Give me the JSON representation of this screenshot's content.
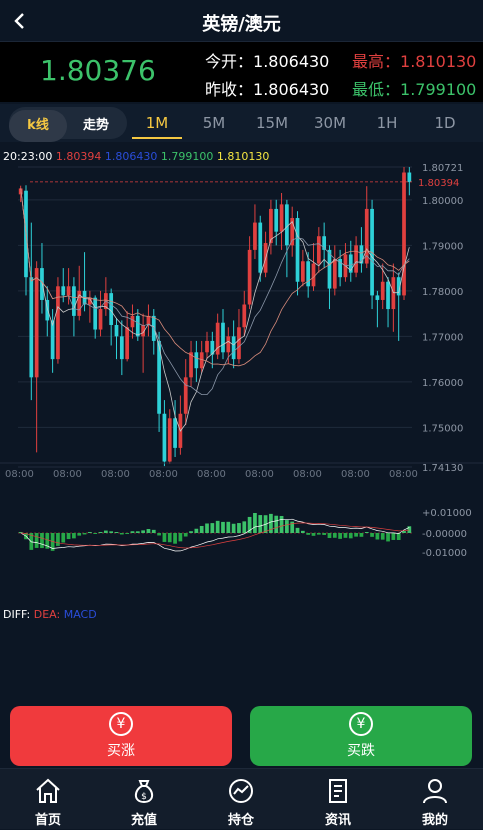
{
  "header": {
    "title": "英镑/澳元"
  },
  "quote": {
    "price": "1.80376",
    "open_label": "今开：",
    "open_value": "1.806430",
    "prev_close_label": "昨收：",
    "prev_close_value": "1.806430",
    "high_label": "最高：",
    "high_value": "1.810130",
    "low_label": "最低：",
    "low_value": "1.799100"
  },
  "tabs": {
    "kline": "k线",
    "trend": "走势",
    "timeframes": [
      "1M",
      "5M",
      "15M",
      "30M",
      "1H",
      "1D"
    ],
    "active_timeframe": "1M"
  },
  "legend": {
    "time": "20:23:00",
    "v1": "1.80394",
    "v2": "1.806430",
    "v3": "1.799100",
    "v4": "1.810130"
  },
  "macd_legend": {
    "diff": "DIFF:",
    "dea": "DEA:",
    "macd": "MACD"
  },
  "actions": {
    "buy_up": "买涨",
    "buy_down": "买跌"
  },
  "nav": {
    "home": "首页",
    "deposit": "充值",
    "positions": "持仓",
    "news": "资讯",
    "mine": "我的"
  },
  "colors": {
    "up": "#3cc26a",
    "down": "#e0403f",
    "accent": "#f5c842",
    "buy_up_bg": "#f03a3d",
    "buy_down_bg": "#27a848"
  },
  "chart_data": {
    "type": "candlestick",
    "price_axis": [
      "1.80721",
      "1.80000",
      "1.79000",
      "1.78000",
      "1.77000",
      "1.76000",
      "1.75000",
      "1.74130"
    ],
    "ylim": [
      1.7413,
      1.80721
    ],
    "last_price_label": "1.80394",
    "x_ticks": [
      "08:00",
      "08:00",
      "08:00",
      "08:00",
      "08:00",
      "08:00",
      "08:00",
      "08:00",
      "08:00"
    ],
    "macd_axis": [
      "+0.01000",
      "-0.00000",
      "-0.01000"
    ],
    "candles": [
      [
        1.8012,
        1.8025,
        1.8031,
        1.7995
      ],
      [
        1.802,
        1.783,
        1.8032,
        1.779
      ],
      [
        1.783,
        1.761,
        1.795,
        1.756
      ],
      [
        1.761,
        1.785,
        1.7865,
        1.7445
      ],
      [
        1.785,
        1.778,
        1.7905,
        1.775
      ],
      [
        1.778,
        1.7735,
        1.781,
        1.77
      ],
      [
        1.7735,
        1.765,
        1.776,
        1.762
      ],
      [
        1.765,
        1.781,
        1.783,
        1.764
      ],
      [
        1.781,
        1.779,
        1.785,
        1.7775
      ],
      [
        1.779,
        1.781,
        1.785,
        1.777
      ],
      [
        1.781,
        1.7745,
        1.783,
        1.77
      ],
      [
        1.7745,
        1.78,
        1.7855,
        1.7735
      ],
      [
        1.78,
        1.777,
        1.7885,
        1.7755
      ],
      [
        1.777,
        1.7785,
        1.78,
        1.773
      ],
      [
        1.7785,
        1.7715,
        1.779,
        1.7695
      ],
      [
        1.7715,
        1.776,
        1.78,
        1.77
      ],
      [
        1.776,
        1.7795,
        1.783,
        1.7745
      ],
      [
        1.7795,
        1.7725,
        1.7805,
        1.768
      ],
      [
        1.7725,
        1.77,
        1.774,
        1.765
      ],
      [
        1.77,
        1.765,
        1.7735,
        1.7615
      ],
      [
        1.765,
        1.772,
        1.7755,
        1.7645
      ],
      [
        1.772,
        1.7745,
        1.777,
        1.7695
      ],
      [
        1.7745,
        1.77,
        1.776,
        1.769
      ],
      [
        1.77,
        1.7725,
        1.775,
        1.762
      ],
      [
        1.7725,
        1.7745,
        1.777,
        1.77
      ],
      [
        1.7745,
        1.769,
        1.776,
        1.766
      ],
      [
        1.769,
        1.753,
        1.771,
        1.749
      ],
      [
        1.753,
        1.7425,
        1.756,
        1.7415
      ],
      [
        1.7425,
        1.752,
        1.754,
        1.742
      ],
      [
        1.752,
        1.7455,
        1.756,
        1.7435
      ],
      [
        1.7455,
        1.753,
        1.757,
        1.744
      ],
      [
        1.753,
        1.761,
        1.765,
        1.7505
      ],
      [
        1.761,
        1.7665,
        1.769,
        1.759
      ],
      [
        1.7665,
        1.763,
        1.769,
        1.76
      ],
      [
        1.763,
        1.7665,
        1.769,
        1.762
      ],
      [
        1.7665,
        1.769,
        1.771,
        1.765
      ],
      [
        1.769,
        1.766,
        1.771,
        1.763
      ],
      [
        1.766,
        1.773,
        1.775,
        1.765
      ],
      [
        1.773,
        1.7665,
        1.776,
        1.765
      ],
      [
        1.7665,
        1.77,
        1.772,
        1.764
      ],
      [
        1.77,
        1.765,
        1.7735,
        1.763
      ],
      [
        1.765,
        1.772,
        1.776,
        1.764
      ],
      [
        1.772,
        1.777,
        1.78,
        1.77
      ],
      [
        1.777,
        1.789,
        1.792,
        1.776
      ],
      [
        1.789,
        1.795,
        1.799,
        1.787
      ],
      [
        1.795,
        1.784,
        1.7965,
        1.782
      ],
      [
        1.784,
        1.7905,
        1.793,
        1.783
      ],
      [
        1.7905,
        1.798,
        1.8,
        1.788
      ],
      [
        1.798,
        1.793,
        1.8,
        1.79
      ],
      [
        1.793,
        1.799,
        1.8015,
        1.789
      ],
      [
        1.799,
        1.79,
        1.8,
        1.783
      ],
      [
        1.79,
        1.796,
        1.7985,
        1.7875
      ],
      [
        1.796,
        1.782,
        1.7975,
        1.779
      ],
      [
        1.782,
        1.7865,
        1.789,
        1.781
      ],
      [
        1.7865,
        1.781,
        1.7885,
        1.7785
      ],
      [
        1.781,
        1.786,
        1.7905,
        1.78
      ],
      [
        1.786,
        1.792,
        1.794,
        1.784
      ],
      [
        1.792,
        1.789,
        1.795,
        1.785
      ],
      [
        1.789,
        1.7805,
        1.79,
        1.776
      ],
      [
        1.7805,
        1.787,
        1.79,
        1.779
      ],
      [
        1.787,
        1.783,
        1.789,
        1.781
      ],
      [
        1.783,
        1.788,
        1.7905,
        1.782
      ],
      [
        1.788,
        1.784,
        1.791,
        1.782
      ],
      [
        1.784,
        1.79,
        1.792,
        1.783
      ],
      [
        1.79,
        1.786,
        1.794,
        1.784
      ],
      [
        1.786,
        1.798,
        1.803,
        1.785
      ],
      [
        1.798,
        1.779,
        1.8,
        1.776
      ],
      [
        1.779,
        1.778,
        1.78,
        1.772
      ],
      [
        1.778,
        1.782,
        1.786,
        1.776
      ],
      [
        1.782,
        1.776,
        1.783,
        1.772
      ],
      [
        1.776,
        1.783,
        1.786,
        1.771
      ],
      [
        1.783,
        1.779,
        1.784,
        1.769
      ],
      [
        1.779,
        1.806,
        1.8072,
        1.778
      ],
      [
        1.806,
        1.8039,
        1.8072,
        1.801
      ]
    ]
  }
}
